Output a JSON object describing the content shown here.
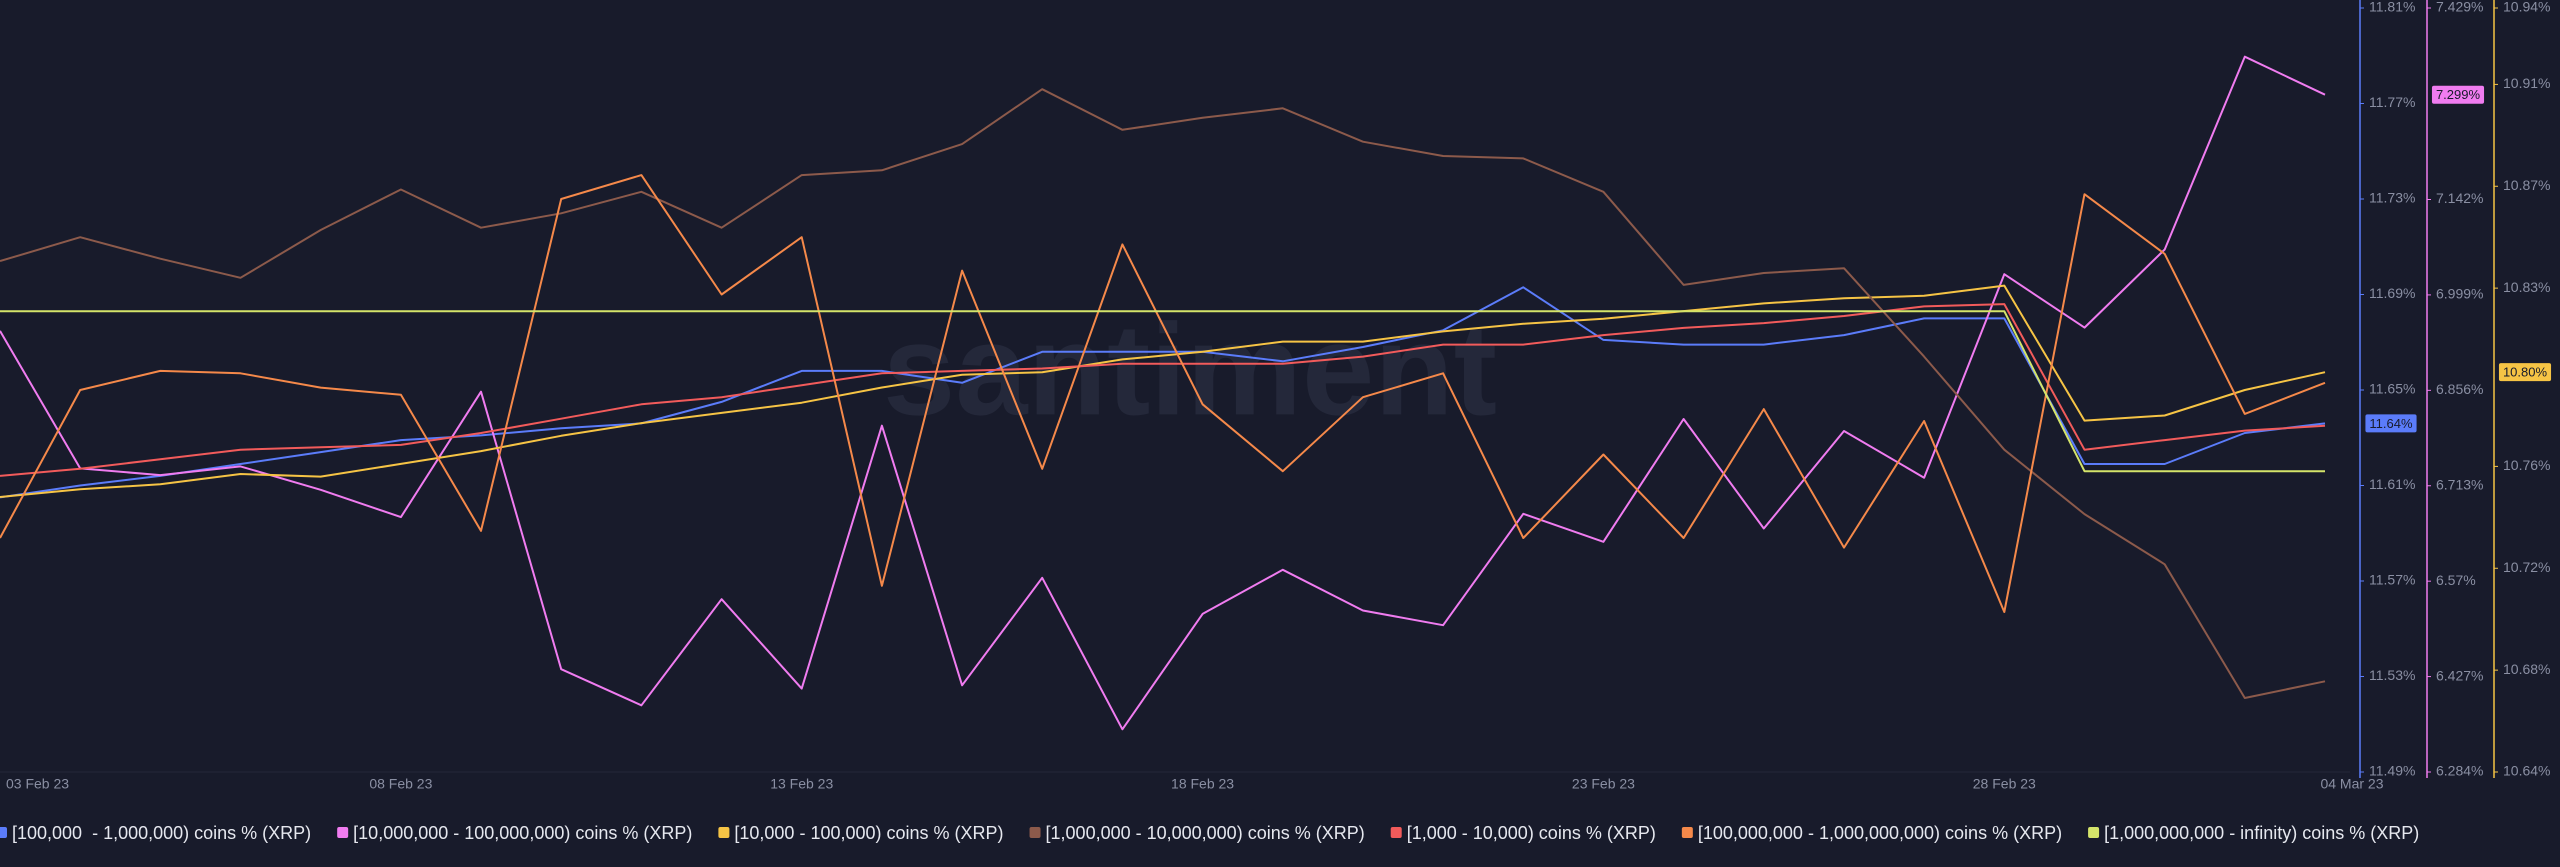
{
  "chart_data": {
    "type": "line",
    "watermark": "santiment",
    "categories": [
      "03 Feb 23",
      null,
      null,
      null,
      null,
      "08 Feb 23",
      null,
      null,
      null,
      null,
      "13 Feb 23",
      null,
      null,
      null,
      null,
      "18 Feb 23",
      null,
      null,
      null,
      null,
      "23 Feb 23",
      null,
      null,
      null,
      null,
      "28 Feb 23",
      null,
      null,
      null,
      "04 Mar 23"
    ],
    "ylim": [
      11.49,
      11.81
    ],
    "yticks": [
      {
        "value": 11.81,
        "label": "11.81%"
      },
      {
        "value": 11.77,
        "label": "11.77%"
      },
      {
        "value": 11.73,
        "label": "11.73%"
      },
      {
        "value": 11.69,
        "label": "11.69%"
      },
      {
        "value": 11.65,
        "label": "11.65%"
      },
      {
        "value": 11.61,
        "label": "11.61%"
      },
      {
        "value": 11.57,
        "label": "11.57%"
      },
      {
        "value": 11.53,
        "label": "11.53%"
      },
      {
        "value": 11.49,
        "label": "11.49%"
      }
    ],
    "y_color": "#5b7cfa",
    "y2lim": [
      6.284,
      7.429
    ],
    "y2ticks": [
      {
        "value": 7.429,
        "label": "7.429%"
      },
      {
        "value": 7.142,
        "label": "7.142%"
      },
      {
        "value": 6.999,
        "label": "6.999%"
      },
      {
        "value": 6.856,
        "label": "6.856%"
      },
      {
        "value": 6.713,
        "label": "6.713%"
      },
      {
        "value": 6.57,
        "label": "6.57%"
      },
      {
        "value": 6.427,
        "label": "6.427%"
      },
      {
        "value": 6.284,
        "label": "6.284%"
      }
    ],
    "y2_color": "#f07cf0",
    "y3lim": [
      10.64,
      10.94
    ],
    "y3ticks": [
      {
        "value": 10.94,
        "label": "10.94%"
      },
      {
        "value": 10.91,
        "label": "10.91%"
      },
      {
        "value": 10.87,
        "label": "10.87%"
      },
      {
        "value": 10.83,
        "label": "10.83%"
      },
      {
        "value": 10.76,
        "label": "10.76%"
      },
      {
        "value": 10.72,
        "label": "10.72%"
      },
      {
        "value": 10.68,
        "label": "10.68%"
      },
      {
        "value": 10.64,
        "label": "10.64%"
      }
    ],
    "y3_color": "#f6c445",
    "series": [
      {
        "name": "[100,000  - 1,000,000) coins % (XRP)",
        "color": "#5b7cfa",
        "axis": "y",
        "last_label": "11.64%",
        "values": [
          11.605,
          11.61,
          11.614,
          11.619,
          11.624,
          11.629,
          11.631,
          11.634,
          11.636,
          11.645,
          11.658,
          11.658,
          11.653,
          11.666,
          11.666,
          11.666,
          11.662,
          11.668,
          11.675,
          11.693,
          11.671,
          11.669,
          11.669,
          11.673,
          11.68,
          11.68,
          11.619,
          11.619,
          11.632,
          11.636
        ]
      },
      {
        "name": "[10,000,000 - 100,000,000) coins % (XRP)",
        "color": "#f07cf0",
        "axis": "y2",
        "last_label": "7.299%",
        "values": [
          6.945,
          6.739,
          6.729,
          6.742,
          6.707,
          6.666,
          6.854,
          6.438,
          6.384,
          6.543,
          6.409,
          6.803,
          6.414,
          6.575,
          6.348,
          6.521,
          6.587,
          6.526,
          6.504,
          6.671,
          6.629,
          6.813,
          6.649,
          6.795,
          6.725,
          7.03,
          6.95,
          7.067,
          7.356,
          7.299
        ]
      },
      {
        "name": "[10,000 - 100,000) coins % (XRP)",
        "color": "#f6c445",
        "axis": "y3",
        "last_label": "10.80%",
        "values": [
          10.748,
          10.751,
          10.753,
          10.757,
          10.756,
          10.761,
          10.766,
          10.772,
          10.777,
          10.781,
          10.785,
          10.791,
          10.796,
          10.797,
          10.802,
          10.805,
          10.809,
          10.809,
          10.813,
          10.816,
          10.818,
          10.821,
          10.824,
          10.826,
          10.827,
          10.831,
          10.778,
          10.78,
          10.79,
          10.797
        ]
      },
      {
        "name": "[1,000,000 - 10,000,000) coins % (XRP)",
        "color": "#8c5a4b",
        "axis": "y",
        "values": [
          11.704,
          11.714,
          11.705,
          11.697,
          11.717,
          11.734,
          11.718,
          11.724,
          11.733,
          11.718,
          11.74,
          11.742,
          11.753,
          11.776,
          11.759,
          11.764,
          11.768,
          11.754,
          11.748,
          11.747,
          11.733,
          11.694,
          11.699,
          11.701,
          11.664,
          11.625,
          11.598,
          11.577,
          11.521,
          11.528
        ]
      },
      {
        "name": "[1,000 - 10,000) coins % (XRP)",
        "color": "#f25b5b",
        "axis": "y",
        "values": [
          11.614,
          11.617,
          11.621,
          11.625,
          11.626,
          11.627,
          11.632,
          11.638,
          11.644,
          11.647,
          11.652,
          11.657,
          11.658,
          11.659,
          11.661,
          11.661,
          11.661,
          11.664,
          11.669,
          11.669,
          11.673,
          11.676,
          11.678,
          11.681,
          11.685,
          11.686,
          11.625,
          11.629,
          11.633,
          11.635
        ]
      },
      {
        "name": "[100,000,000 - 1,000,000,000) coins % (XRP)",
        "color": "#f5894a",
        "axis": "y",
        "values": [
          11.588,
          11.65,
          11.658,
          11.657,
          11.651,
          11.648,
          11.591,
          11.73,
          11.74,
          11.69,
          11.714,
          11.568,
          11.7,
          11.617,
          11.711,
          11.644,
          11.616,
          11.647,
          11.657,
          11.588,
          11.623,
          11.588,
          11.642,
          11.584,
          11.637,
          11.557,
          11.732,
          11.707,
          11.64,
          11.653
        ]
      },
      {
        "name": "[1,000,000,000 - infinity) coins % (XRP)",
        "color": "#d4e46a",
        "axis": "y",
        "values": [
          11.683,
          11.683,
          11.683,
          11.683,
          11.683,
          11.683,
          11.683,
          11.683,
          11.683,
          11.683,
          11.683,
          11.683,
          11.683,
          11.683,
          11.683,
          11.683,
          11.683,
          11.683,
          11.683,
          11.683,
          11.683,
          11.683,
          11.683,
          11.683,
          11.683,
          11.683,
          11.616,
          11.616,
          11.616,
          11.616
        ]
      }
    ]
  }
}
